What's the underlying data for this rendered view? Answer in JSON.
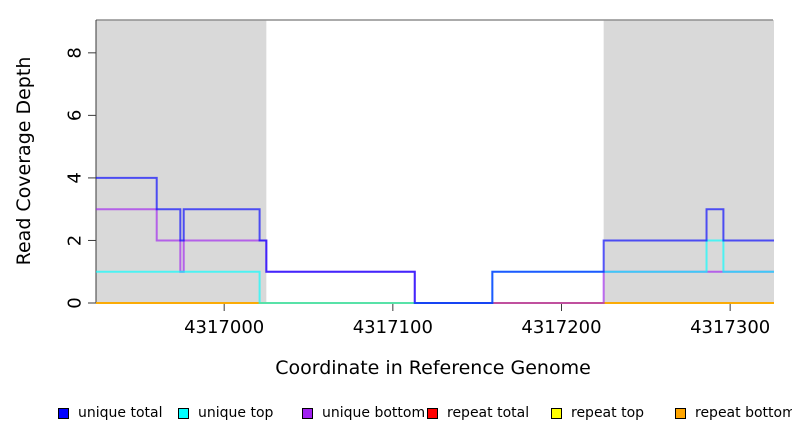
{
  "chart_data": {
    "type": "line",
    "step": "after",
    "title": "",
    "xlabel": "Coordinate in Reference Genome",
    "ylabel": "Read Coverage Depth",
    "xlim": [
      4316924,
      4317326
    ],
    "ylim": [
      0,
      9.05
    ],
    "xticks": [
      4317000,
      4317100,
      4317200,
      4317300
    ],
    "yticks": [
      0,
      2,
      4,
      6,
      8
    ],
    "grid": false,
    "legend_position": "bottom",
    "shaded_region_color": "#d9d9d9",
    "plot_border_color": "#8f8f8f",
    "axis_color": "#3a3a3a",
    "shaded_regions": [
      [
        4316924,
        4317025
      ],
      [
        4317225,
        4317326
      ]
    ],
    "series": [
      {
        "name": "unique total",
        "color": "#0000FF",
        "points": [
          [
            4316924,
            4
          ],
          [
            4316960,
            3
          ],
          [
            4316974,
            2
          ],
          [
            4316976,
            3
          ],
          [
            4317021,
            2
          ],
          [
            4317025,
            1
          ],
          [
            4317113,
            0
          ],
          [
            4317159,
            1
          ],
          [
            4317225,
            2
          ],
          [
            4317286,
            3
          ],
          [
            4317296,
            2
          ],
          [
            4317326,
            2
          ]
        ]
      },
      {
        "name": "unique top",
        "color": "#00FFFF",
        "points": [
          [
            4316924,
            1
          ],
          [
            4317021,
            0
          ],
          [
            4317159,
            1
          ],
          [
            4317286,
            2
          ],
          [
            4317296,
            1
          ],
          [
            4317326,
            1
          ]
        ]
      },
      {
        "name": "unique bottom",
        "color": "#A020F0",
        "points": [
          [
            4316924,
            3
          ],
          [
            4316960,
            2
          ],
          [
            4316974,
            1
          ],
          [
            4316976,
            2
          ],
          [
            4317025,
            1
          ],
          [
            4317113,
            0
          ],
          [
            4317225,
            1
          ],
          [
            4317326,
            1
          ]
        ]
      },
      {
        "name": "repeat total",
        "color": "#FF0000",
        "points": [
          [
            4316924,
            0
          ],
          [
            4317326,
            0
          ]
        ]
      },
      {
        "name": "repeat top",
        "color": "#FFFF00",
        "points": [
          [
            4316924,
            0
          ],
          [
            4317326,
            0
          ]
        ]
      },
      {
        "name": "repeat bottom",
        "color": "#FFA500",
        "points": [
          [
            4316924,
            0
          ],
          [
            4317326,
            0
          ]
        ]
      }
    ],
    "draw_order": [
      3,
      4,
      5,
      2,
      1,
      0
    ],
    "line_width": 2,
    "line_opacity": 0.65
  }
}
